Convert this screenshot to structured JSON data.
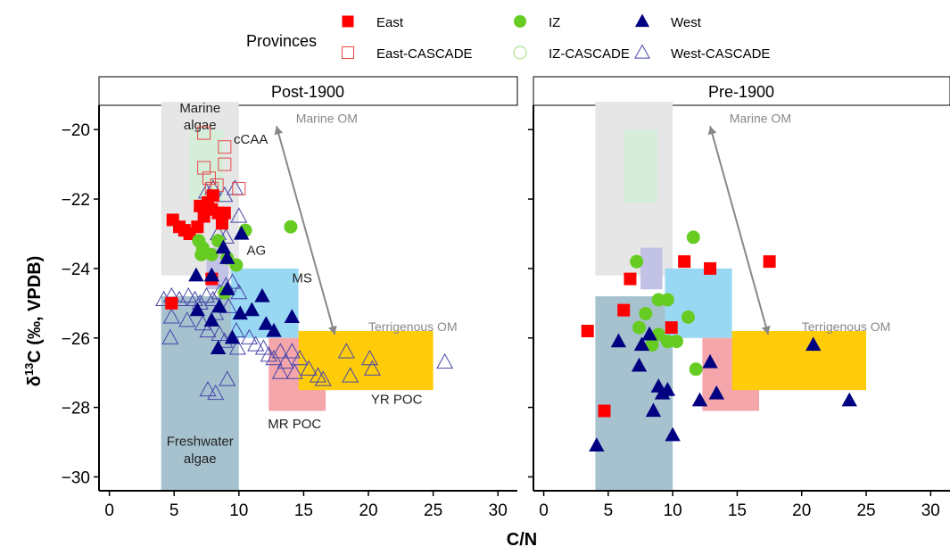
{
  "legend": {
    "title": "Provinces",
    "entries": [
      {
        "key": "east",
        "label": "East",
        "marker": "square",
        "filled": true,
        "color": "#ff0000"
      },
      {
        "key": "iz",
        "label": "IZ",
        "marker": "circle",
        "filled": true,
        "color": "#66cc22"
      },
      {
        "key": "west",
        "label": "West",
        "marker": "triangle",
        "filled": true,
        "color": "#000080"
      },
      {
        "key": "east_c",
        "label": "East-CASCADE",
        "marker": "square",
        "filled": false,
        "color": "#e84848"
      },
      {
        "key": "iz_c",
        "label": "IZ-CASCADE",
        "marker": "circle",
        "filled": false,
        "color": "#99dd77"
      },
      {
        "key": "west_c",
        "label": "West-CASCADE",
        "marker": "triangle",
        "filled": false,
        "color": "#4646aa"
      }
    ]
  },
  "axes": {
    "xlabel": "C/N",
    "ylabel_prefix": "δ",
    "ylabel_sup": "13",
    "ylabel_rest": "C (‰, VPDB)",
    "xticks": [
      0,
      5,
      10,
      15,
      20,
      25,
      30
    ],
    "yticks": [
      -20,
      -22,
      -24,
      -26,
      -28,
      -30
    ],
    "xtick_labels": [
      "0",
      "5",
      "10",
      "15",
      "20",
      "25",
      "30"
    ],
    "ytick_labels": [
      "−20",
      "−22",
      "−24",
      "−26",
      "−28",
      "−30"
    ],
    "xlim": [
      -0.8,
      31.5
    ],
    "ylim": [
      -30.4,
      -19.3
    ]
  },
  "regions": [
    {
      "name": "Marine algae",
      "x": [
        4,
        10
      ],
      "y": [
        -24.2,
        -19.2
      ],
      "color": "#e6e6e6"
    },
    {
      "name": "Freshwater algae",
      "x": [
        4,
        10
      ],
      "y": [
        -30.4,
        -24.8
      ],
      "color": "#a6c2cf"
    },
    {
      "name": "cCAA",
      "x": [
        6.2,
        8.8
      ],
      "y": [
        -22.1,
        -20.0
      ],
      "color": "#d6edda"
    },
    {
      "name": "AG",
      "x": [
        7.5,
        9.2
      ],
      "y": [
        -24.6,
        -23.4
      ],
      "color": "#c2c2e6"
    },
    {
      "name": "MS",
      "x": [
        9.4,
        14.6
      ],
      "y": [
        -26.0,
        -24.0
      ],
      "color": "#99d8f2"
    },
    {
      "name": "MR POC",
      "x": [
        12.3,
        16.7
      ],
      "y": [
        -28.1,
        -26.0
      ],
      "color": "#f4a6ab"
    },
    {
      "name": "YR POC",
      "x": [
        14.6,
        25
      ],
      "y": [
        -27.5,
        -25.8
      ],
      "color": "#ffcc0a"
    }
  ],
  "annotations": {
    "marine_om": "Marine OM",
    "terrigenous_om": "Terrigenous OM",
    "label_marine_algae_1": "Marine",
    "label_marine_algae_2": "algae",
    "label_freshwater_1": "Freshwater",
    "label_freshwater_2": "algae",
    "label_ccaa": "cCAA",
    "label_ag": "AG",
    "label_ms": "MS",
    "label_mrpoc": "MR POC",
    "label_yrpoc": "YR POC"
  },
  "chart_data": [
    {
      "type": "scatter",
      "panel": "Post-1900",
      "xlabel": "C/N",
      "ylabel": "δ13C (‰, VPDB)",
      "xlim": [
        -0.8,
        31.5
      ],
      "ylim": [
        -30.4,
        -19.3
      ],
      "series": [
        {
          "name": "East",
          "points": [
            [
              4.9,
              -22.6
            ],
            [
              5.4,
              -22.8
            ],
            [
              5.8,
              -22.9
            ],
            [
              6.2,
              -23.0
            ],
            [
              7.0,
              -22.2
            ],
            [
              7.3,
              -22.5
            ],
            [
              7.6,
              -22.1
            ],
            [
              8.0,
              -21.9
            ],
            [
              8.4,
              -22.4
            ],
            [
              8.7,
              -22.7
            ],
            [
              6.8,
              -22.8
            ],
            [
              7.9,
              -22.3
            ],
            [
              8.9,
              -22.4
            ],
            [
              7.9,
              -24.3
            ],
            [
              4.8,
              -25.0
            ]
          ]
        },
        {
          "name": "IZ",
          "points": [
            [
              6.9,
              -23.2
            ],
            [
              7.2,
              -23.4
            ],
            [
              7.9,
              -23.6
            ],
            [
              8.4,
              -23.2
            ],
            [
              7.1,
              -23.6
            ],
            [
              9.1,
              -23.7
            ],
            [
              9.8,
              -23.9
            ],
            [
              10.5,
              -22.9
            ],
            [
              14.0,
              -22.8
            ],
            [
              8.9,
              -24.7
            ]
          ]
        },
        {
          "name": "West",
          "points": [
            [
              6.7,
              -24.2
            ],
            [
              7.9,
              -24.2
            ],
            [
              8.8,
              -23.4
            ],
            [
              9.1,
              -23.7
            ],
            [
              10.2,
              -23.0
            ],
            [
              6.8,
              -25.2
            ],
            [
              7.9,
              -25.5
            ],
            [
              8.5,
              -25.1
            ],
            [
              9.1,
              -24.6
            ],
            [
              10.1,
              -25.3
            ],
            [
              11.0,
              -25.2
            ],
            [
              11.8,
              -24.8
            ],
            [
              12.1,
              -25.6
            ],
            [
              12.7,
              -25.8
            ],
            [
              14.1,
              -25.4
            ],
            [
              8.4,
              -26.3
            ],
            [
              9.5,
              -26.0
            ]
          ]
        },
        {
          "name": "East-CASCADE",
          "points": [
            [
              7.3,
              -20.1
            ],
            [
              8.9,
              -20.5
            ],
            [
              7.3,
              -21.1
            ],
            [
              8.9,
              -21.0
            ],
            [
              7.7,
              -21.4
            ],
            [
              7.9,
              -21.7
            ],
            [
              8.3,
              -21.6
            ],
            [
              10.0,
              -21.7
            ]
          ]
        },
        {
          "name": "IZ-CASCADE",
          "points": []
        },
        {
          "name": "West-CASCADE",
          "points": [
            [
              7.5,
              -21.8
            ],
            [
              8.0,
              -21.7
            ],
            [
              8.9,
              -21.9
            ],
            [
              9.7,
              -21.7
            ],
            [
              10.0,
              -22.5
            ],
            [
              8.4,
              -23.0
            ],
            [
              9.0,
              -23.1
            ],
            [
              4.2,
              -24.9
            ],
            [
              4.8,
              -24.8
            ],
            [
              5.4,
              -24.9
            ],
            [
              6.1,
              -24.8
            ],
            [
              6.6,
              -24.9
            ],
            [
              7.0,
              -25.0
            ],
            [
              7.5,
              -24.8
            ],
            [
              8.0,
              -24.9
            ],
            [
              8.5,
              -24.7
            ],
            [
              9.0,
              -24.5
            ],
            [
              9.5,
              -24.4
            ],
            [
              10.0,
              -24.7
            ],
            [
              4.8,
              -25.4
            ],
            [
              6.0,
              -25.5
            ],
            [
              7.2,
              -25.6
            ],
            [
              8.2,
              -25.3
            ],
            [
              9.2,
              -25.1
            ],
            [
              9.8,
              -25.8
            ],
            [
              4.7,
              -26.0
            ],
            [
              7.6,
              -25.8
            ],
            [
              8.5,
              -25.9
            ],
            [
              8.9,
              -26.1
            ],
            [
              9.9,
              -26.3
            ],
            [
              10.8,
              -26.0
            ],
            [
              11.3,
              -26.2
            ],
            [
              11.9,
              -26.3
            ],
            [
              12.3,
              -26.5
            ],
            [
              12.7,
              -26.6
            ],
            [
              13.2,
              -26.4
            ],
            [
              13.6,
              -26.7
            ],
            [
              14.1,
              -26.4
            ],
            [
              14.7,
              -26.6
            ],
            [
              15.4,
              -26.9
            ],
            [
              16.1,
              -27.1
            ],
            [
              13.2,
              -27.0
            ],
            [
              14.3,
              -27.0
            ],
            [
              16.5,
              -27.2
            ],
            [
              18.3,
              -26.4
            ],
            [
              18.6,
              -27.1
            ],
            [
              20.1,
              -26.6
            ],
            [
              20.3,
              -26.9
            ],
            [
              25.9,
              -26.7
            ],
            [
              7.6,
              -27.5
            ],
            [
              8.2,
              -27.6
            ],
            [
              9.1,
              -27.2
            ]
          ]
        }
      ]
    },
    {
      "type": "scatter",
      "panel": "Pre-1900",
      "xlabel": "C/N",
      "ylabel": "δ13C (‰, VPDB)",
      "xlim": [
        -0.8,
        31.5
      ],
      "ylim": [
        -30.4,
        -19.3
      ],
      "series": [
        {
          "name": "East",
          "points": [
            [
              3.4,
              -25.8
            ],
            [
              4.7,
              -28.1
            ],
            [
              6.2,
              -25.2
            ],
            [
              6.7,
              -24.3
            ],
            [
              9.9,
              -25.7
            ],
            [
              10.9,
              -23.8
            ],
            [
              12.9,
              -24.0
            ],
            [
              17.5,
              -23.8
            ]
          ]
        },
        {
          "name": "IZ",
          "points": [
            [
              7.2,
              -23.8
            ],
            [
              11.6,
              -23.1
            ],
            [
              8.9,
              -24.9
            ],
            [
              9.6,
              -24.9
            ],
            [
              7.9,
              -25.3
            ],
            [
              11.2,
              -25.4
            ],
            [
              7.4,
              -25.7
            ],
            [
              8.9,
              -25.9
            ],
            [
              8.4,
              -26.2
            ],
            [
              9.6,
              -26.1
            ],
            [
              10.3,
              -26.1
            ],
            [
              11.8,
              -26.9
            ]
          ]
        },
        {
          "name": "West",
          "points": [
            [
              4.1,
              -29.1
            ],
            [
              5.8,
              -26.1
            ],
            [
              7.4,
              -26.8
            ],
            [
              7.6,
              -26.2
            ],
            [
              8.2,
              -25.9
            ],
            [
              8.5,
              -28.1
            ],
            [
              8.9,
              -27.4
            ],
            [
              9.2,
              -27.6
            ],
            [
              9.6,
              -27.5
            ],
            [
              10.0,
              -28.8
            ],
            [
              12.1,
              -27.8
            ],
            [
              12.9,
              -26.7
            ],
            [
              13.4,
              -27.6
            ],
            [
              20.9,
              -26.2
            ],
            [
              23.7,
              -27.8
            ]
          ]
        },
        {
          "name": "East-CASCADE",
          "points": []
        },
        {
          "name": "IZ-CASCADE",
          "points": []
        },
        {
          "name": "West-CASCADE",
          "points": []
        }
      ]
    }
  ]
}
